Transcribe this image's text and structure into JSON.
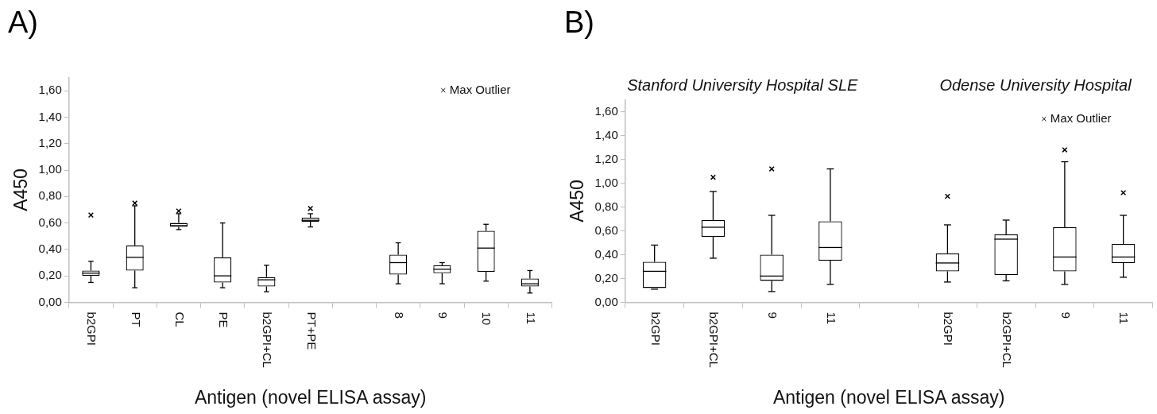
{
  "chart_data": [
    {
      "type": "box",
      "title": "A)",
      "xlabel": "Antigen (novel ELISA assay)",
      "ylabel": "A450",
      "categories": [
        "b2GPI",
        "PT",
        "CL",
        "PE",
        "b2GPI+CL",
        "PT+PE",
        null,
        "8",
        "9",
        "10",
        "11"
      ],
      "boxes": [
        {
          "low": 0.15,
          "q1": 0.2,
          "median": 0.22,
          "q3": 0.24,
          "high": 0.31
        },
        {
          "low": 0.11,
          "q1": 0.24,
          "median": 0.34,
          "q3": 0.43,
          "high": 0.73
        },
        {
          "low": 0.55,
          "q1": 0.57,
          "median": 0.58,
          "q3": 0.6,
          "high": 0.67
        },
        {
          "low": 0.11,
          "q1": 0.15,
          "median": 0.2,
          "q3": 0.34,
          "high": 0.6
        },
        {
          "low": 0.08,
          "q1": 0.12,
          "median": 0.17,
          "q3": 0.19,
          "high": 0.28
        },
        {
          "low": 0.57,
          "q1": 0.61,
          "median": 0.62,
          "q3": 0.64,
          "high": 0.67
        },
        null,
        {
          "low": 0.14,
          "q1": 0.21,
          "median": 0.3,
          "q3": 0.36,
          "high": 0.45
        },
        {
          "low": 0.14,
          "q1": 0.22,
          "median": 0.25,
          "q3": 0.28,
          "high": 0.3
        },
        {
          "low": 0.16,
          "q1": 0.23,
          "median": 0.41,
          "q3": 0.54,
          "high": 0.59
        },
        {
          "low": 0.07,
          "q1": 0.12,
          "median": 0.14,
          "q3": 0.18,
          "high": 0.24
        }
      ],
      "series": [
        {
          "name": "Max Outlier",
          "type": "scatter",
          "color": "#000000",
          "values": [
            0.66,
            0.75,
            0.69,
            null,
            null,
            0.71,
            null,
            null,
            null,
            null,
            null
          ]
        }
      ],
      "marker": "cross",
      "legend": "top right",
      "ylim": [
        0,
        1.7
      ],
      "yticks": [
        {
          "value": 0,
          "label": "0,00"
        },
        {
          "value": 0.2,
          "label": "0,20"
        },
        {
          "value": 0.4,
          "label": "0,40"
        },
        {
          "value": 0.6,
          "label": "0,60"
        },
        {
          "value": 0.8,
          "label": "0,80"
        },
        {
          "value": 1.0,
          "label": "1,00"
        },
        {
          "value": 1.2,
          "label": "1,20"
        },
        {
          "value": 1.4,
          "label": "1,40"
        },
        {
          "value": 1.6,
          "label": "1,60"
        }
      ]
    },
    {
      "type": "box",
      "title": "B)",
      "xlabel": "Antigen (novel ELISA assay)",
      "ylabel": "A450",
      "annotations": [
        "Stanford University Hospital SLE",
        "Odense University Hospital"
      ],
      "categories": [
        "b2GPI",
        "b2GPI+CL",
        "9",
        "11",
        null,
        "b2GPI",
        "b2GPI+CL",
        "9",
        "11"
      ],
      "boxes": [
        {
          "low": 0.11,
          "q1": 0.12,
          "median": 0.26,
          "q3": 0.34,
          "high": 0.48
        },
        {
          "low": 0.37,
          "q1": 0.55,
          "median": 0.63,
          "q3": 0.69,
          "high": 0.93
        },
        {
          "low": 0.09,
          "q1": 0.18,
          "median": 0.22,
          "q3": 0.4,
          "high": 0.73
        },
        {
          "low": 0.15,
          "q1": 0.35,
          "median": 0.46,
          "q3": 0.68,
          "high": 1.12
        },
        null,
        {
          "low": 0.17,
          "q1": 0.26,
          "median": 0.33,
          "q3": 0.41,
          "high": 0.65
        },
        {
          "low": 0.18,
          "q1": 0.23,
          "median": 0.53,
          "q3": 0.57,
          "high": 0.69
        },
        {
          "low": 0.15,
          "q1": 0.26,
          "median": 0.38,
          "q3": 0.63,
          "high": 1.18
        },
        {
          "low": 0.21,
          "q1": 0.33,
          "median": 0.38,
          "q3": 0.49,
          "high": 0.73
        }
      ],
      "series": [
        {
          "name": "Max Outlier",
          "type": "scatter",
          "color": "#000000",
          "values": [
            null,
            1.05,
            1.12,
            null,
            null,
            0.89,
            null,
            1.28,
            0.92
          ]
        }
      ],
      "marker": "cross",
      "legend": "top right",
      "ylim": [
        0,
        1.7
      ],
      "yticks": [
        {
          "value": 0,
          "label": "0,00"
        },
        {
          "value": 0.2,
          "label": "0,20"
        },
        {
          "value": 0.4,
          "label": "0,40"
        },
        {
          "value": 0.6,
          "label": "0,60"
        },
        {
          "value": 0.8,
          "label": "0,80"
        },
        {
          "value": 1.0,
          "label": "1,00"
        },
        {
          "value": 1.2,
          "label": "1,20"
        },
        {
          "value": 1.4,
          "label": "1,40"
        },
        {
          "value": 1.6,
          "label": "1,60"
        }
      ]
    }
  ]
}
